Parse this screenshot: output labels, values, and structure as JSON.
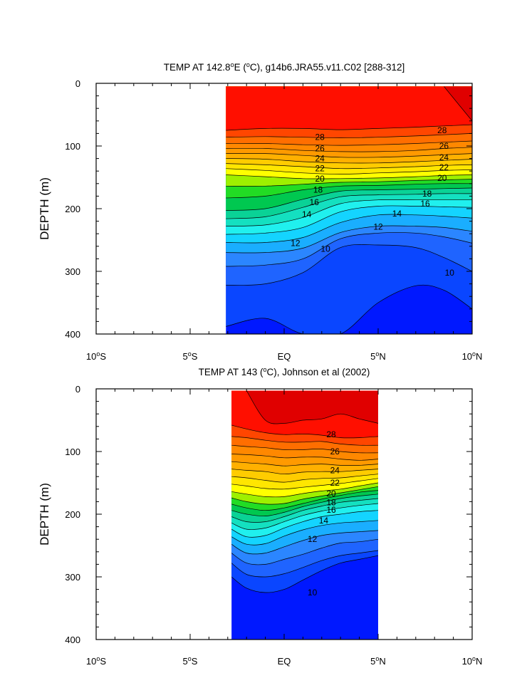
{
  "chart_data": [
    {
      "type": "contour",
      "title_parts": [
        "TEMP AT 142.8",
        "o",
        "E (",
        "o",
        "C), g14b6.JRA55.v11.C02 [288-312]"
      ],
      "ylabel": "DEPTH (m)",
      "xlim": [
        -10,
        10
      ],
      "ylim": [
        400,
        0
      ],
      "yticks": [
        "0",
        "100",
        "200",
        "300",
        "400"
      ],
      "xticks": [
        {
          "num": "10",
          "sup": "o",
          "suf": "S"
        },
        {
          "num": "5",
          "sup": "o",
          "suf": "S"
        },
        {
          "num": "EQ",
          "sup": "",
          "suf": ""
        },
        {
          "num": "5",
          "sup": "o",
          "suf": "N"
        },
        {
          "num": "10",
          "sup": "o",
          "suf": "N"
        }
      ],
      "data_xrange": [
        -3.1,
        10
      ],
      "data_yrange": [
        5,
        400
      ],
      "x": [
        -3.1,
        -1,
        1,
        3,
        5,
        7,
        8.5,
        10
      ],
      "isotherm_depths": [
        {
          "t": 29,
          "d": [
            null,
            null,
            null,
            null,
            null,
            null,
            5,
            60
          ]
        },
        {
          "t": 28,
          "d": [
            75,
            72,
            72,
            74,
            72,
            70,
            68,
            66
          ]
        },
        {
          "t": 27,
          "d": [
            86,
            85,
            86,
            87,
            86,
            84,
            82,
            80
          ]
        },
        {
          "t": 26,
          "d": [
            96,
            96,
            98,
            99,
            98,
            96,
            94,
            92
          ]
        },
        {
          "t": 25,
          "d": [
            104,
            104,
            107,
            109,
            109,
            107,
            104,
            102
          ]
        },
        {
          "t": 24,
          "d": [
            112,
            112,
            115,
            118,
            118,
            116,
            114,
            112
          ]
        },
        {
          "t": 23,
          "d": [
            120,
            121,
            125,
            127,
            127,
            125,
            123,
            121
          ]
        },
        {
          "t": 22,
          "d": [
            128,
            130,
            133,
            136,
            135,
            133,
            131,
            130
          ]
        },
        {
          "t": 21,
          "d": [
            136,
            139,
            143,
            145,
            143,
            141,
            139,
            138
          ]
        },
        {
          "t": 20,
          "d": [
            146,
            149,
            152,
            152,
            151,
            149,
            147,
            146
          ]
        },
        {
          "t": 19,
          "d": [
            164,
            164,
            161,
            158,
            157,
            155,
            154,
            153
          ]
        },
        {
          "t": 18,
          "d": [
            183,
            180,
            170,
            164,
            163,
            161,
            160,
            160
          ]
        },
        {
          "t": 17,
          "d": [
            203,
            200,
            185,
            172,
            170,
            169,
            168,
            167
          ]
        },
        {
          "t": 16,
          "d": [
            216,
            213,
            198,
            181,
            178,
            177,
            176,
            176
          ]
        },
        {
          "t": 15,
          "d": [
            228,
            226,
            214,
            192,
            186,
            186,
            186,
            186
          ]
        },
        {
          "t": 14,
          "d": [
            241,
            239,
            230,
            205,
            196,
            196,
            197,
            198
          ]
        },
        {
          "t": 13,
          "d": [
            254,
            254,
            246,
            222,
            210,
            210,
            212,
            215
          ]
        },
        {
          "t": 12,
          "d": [
            270,
            270,
            263,
            238,
            228,
            228,
            230,
            236
          ]
        },
        {
          "t": 11,
          "d": [
            292,
            290,
            280,
            248,
            239,
            239,
            245,
            255
          ]
        },
        {
          "t": 10,
          "d": [
            322,
            320,
            302,
            262,
            258,
            262,
            278,
            300
          ]
        },
        {
          "t": 9,
          "d": [
            388,
            375,
            400,
            400,
            350,
            323,
            330,
            360
          ]
        }
      ],
      "labels": [
        {
          "text": "28",
          "x": 1.9,
          "y": 86
        },
        {
          "text": "28",
          "x": 8.4,
          "y": 75
        },
        {
          "text": "26",
          "x": 1.9,
          "y": 104
        },
        {
          "text": "26",
          "x": 8.5,
          "y": 100
        },
        {
          "text": "24",
          "x": 1.9,
          "y": 120
        },
        {
          "text": "24",
          "x": 8.5,
          "y": 118
        },
        {
          "text": "22",
          "x": 1.9,
          "y": 136
        },
        {
          "text": "22",
          "x": 8.5,
          "y": 134
        },
        {
          "text": "20",
          "x": 1.9,
          "y": 152
        },
        {
          "text": "20",
          "x": 8.4,
          "y": 151
        },
        {
          "text": "18",
          "x": 1.8,
          "y": 170
        },
        {
          "text": "18",
          "x": 7.6,
          "y": 176
        },
        {
          "text": "16",
          "x": 1.6,
          "y": 190
        },
        {
          "text": "16",
          "x": 7.5,
          "y": 192
        },
        {
          "text": "14",
          "x": 1.2,
          "y": 209
        },
        {
          "text": "14",
          "x": 6.0,
          "y": 208
        },
        {
          "text": "12",
          "x": 0.6,
          "y": 255
        },
        {
          "text": "12",
          "x": 5.0,
          "y": 229
        },
        {
          "text": "10",
          "x": 2.2,
          "y": 264
        },
        {
          "text": "10",
          "x": 8.8,
          "y": 302
        }
      ]
    },
    {
      "type": "contour",
      "title_parts": [
        "TEMP AT 143 (",
        "o",
        "C), Johnson et al (2002)"
      ],
      "ylabel": "DEPTH (m)",
      "xlim": [
        -10,
        10
      ],
      "ylim": [
        400,
        0
      ],
      "yticks": [
        "0",
        "100",
        "200",
        "300",
        "400"
      ],
      "xticks": [
        {
          "num": "10",
          "sup": "o",
          "suf": "S"
        },
        {
          "num": "5",
          "sup": "o",
          "suf": "S"
        },
        {
          "num": "EQ",
          "sup": "",
          "suf": ""
        },
        {
          "num": "5",
          "sup": "o",
          "suf": "N"
        },
        {
          "num": "10",
          "sup": "o",
          "suf": "N"
        }
      ],
      "data_xrange": [
        -2.8,
        5
      ],
      "data_yrange": [
        3,
        400
      ],
      "x": [
        -2.8,
        -2,
        -1,
        0,
        1,
        2,
        3,
        4,
        5
      ],
      "isotherm_depths": [
        {
          "t": 29,
          "d": [
            null,
            3,
            50,
            55,
            50,
            48,
            40,
            48,
            55
          ]
        },
        {
          "t": 28,
          "d": [
            58,
            64,
            70,
            73,
            72,
            74,
            78,
            78,
            76
          ]
        },
        {
          "t": 27,
          "d": [
            76,
            78,
            82,
            85,
            85,
            84,
            88,
            90,
            90
          ]
        },
        {
          "t": 26,
          "d": [
            90,
            92,
            94,
            97,
            97,
            96,
            100,
            102,
            102
          ]
        },
        {
          "t": 25,
          "d": [
            104,
            105,
            107,
            110,
            109,
            109,
            112,
            114,
            112
          ]
        },
        {
          "t": 24,
          "d": [
            116,
            118,
            120,
            123,
            121,
            120,
            122,
            122,
            120
          ]
        },
        {
          "t": 23,
          "d": [
            128,
            130,
            132,
            136,
            133,
            132,
            132,
            130,
            128
          ]
        },
        {
          "t": 22,
          "d": [
            140,
            142,
            146,
            149,
            145,
            143,
            142,
            139,
            136
          ]
        },
        {
          "t": 21,
          "d": [
            152,
            155,
            159,
            160,
            157,
            154,
            151,
            147,
            143
          ]
        },
        {
          "t": 20,
          "d": [
            164,
            168,
            172,
            172,
            167,
            163,
            160,
            155,
            150
          ]
        },
        {
          "t": 19,
          "d": [
            174,
            180,
            184,
            183,
            176,
            171,
            166,
            161,
            156
          ]
        },
        {
          "t": 18,
          "d": [
            184,
            190,
            194,
            190,
            183,
            176,
            170,
            165,
            162
          ]
        },
        {
          "t": 17,
          "d": [
            194,
            200,
            203,
            197,
            188,
            181,
            175,
            171,
            168
          ]
        },
        {
          "t": 16,
          "d": [
            204,
            212,
            212,
            204,
            194,
            187,
            181,
            178,
            175
          ]
        },
        {
          "t": 15,
          "d": [
            214,
            224,
            222,
            212,
            202,
            195,
            190,
            186,
            183
          ]
        },
        {
          "t": 14,
          "d": [
            224,
            236,
            234,
            222,
            212,
            204,
            200,
            196,
            194
          ]
        },
        {
          "t": 13,
          "d": [
            236,
            248,
            247,
            235,
            225,
            218,
            214,
            212,
            210
          ]
        },
        {
          "t": 12,
          "d": [
            248,
            262,
            262,
            252,
            242,
            234,
            230,
            228,
            226
          ]
        },
        {
          "t": 11,
          "d": [
            262,
            278,
            280,
            272,
            264,
            254,
            246,
            244,
            240
          ]
        },
        {
          "t": 10,
          "d": [
            278,
            296,
            300,
            295,
            285,
            274,
            266,
            262,
            258
          ]
        },
        {
          "t": 9,
          "d": [
            300,
            318,
            325,
            320,
            305,
            290,
            278,
            272,
            266
          ]
        }
      ],
      "labels": [
        {
          "text": "28",
          "x": 2.5,
          "y": 73
        },
        {
          "text": "26",
          "x": 2.7,
          "y": 100
        },
        {
          "text": "24",
          "x": 2.7,
          "y": 130
        },
        {
          "text": "22",
          "x": 2.7,
          "y": 150
        },
        {
          "text": "20",
          "x": 2.5,
          "y": 167
        },
        {
          "text": "18",
          "x": 2.5,
          "y": 181
        },
        {
          "text": "16",
          "x": 2.5,
          "y": 193
        },
        {
          "text": "14",
          "x": 2.1,
          "y": 210
        },
        {
          "text": "12",
          "x": 1.5,
          "y": 240
        },
        {
          "text": "10",
          "x": 1.5,
          "y": 325
        }
      ]
    }
  ]
}
